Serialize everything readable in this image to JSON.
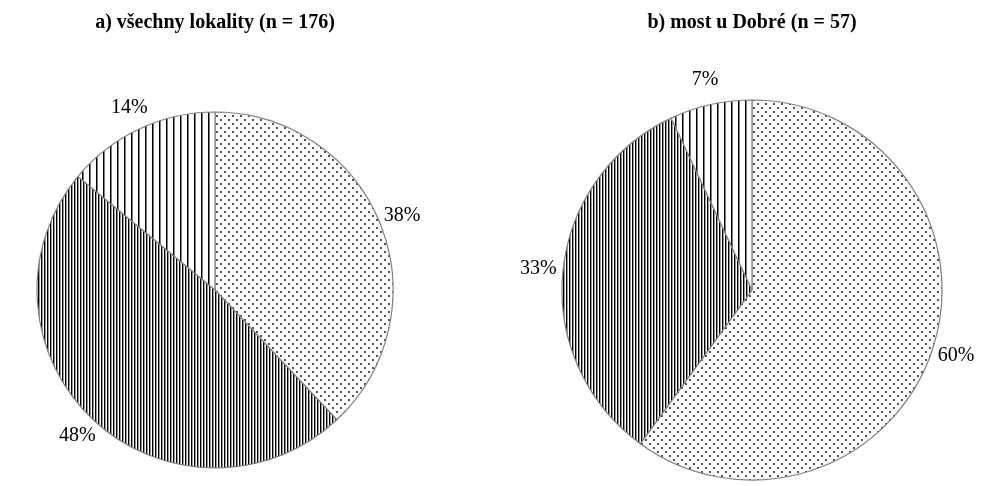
{
  "chart_data": [
    {
      "type": "pie",
      "title": "a) všechny lokality (n = 176)",
      "categories": [
        null,
        null,
        null
      ],
      "values": [
        38,
        48,
        14
      ],
      "colors": [
        "#808080",
        "#808080",
        "#808080"
      ],
      "value_labels": [
        "38%",
        "48%",
        "14%"
      ]
    },
    {
      "type": "pie",
      "title": "b) most u Dobré (n = 57)",
      "categories": [
        null,
        null,
        null
      ],
      "values": [
        60,
        33,
        7
      ],
      "colors": [
        "#808080",
        "#808080",
        "#808080"
      ],
      "value_labels": [
        "60%",
        "33%",
        "7%"
      ]
    }
  ]
}
